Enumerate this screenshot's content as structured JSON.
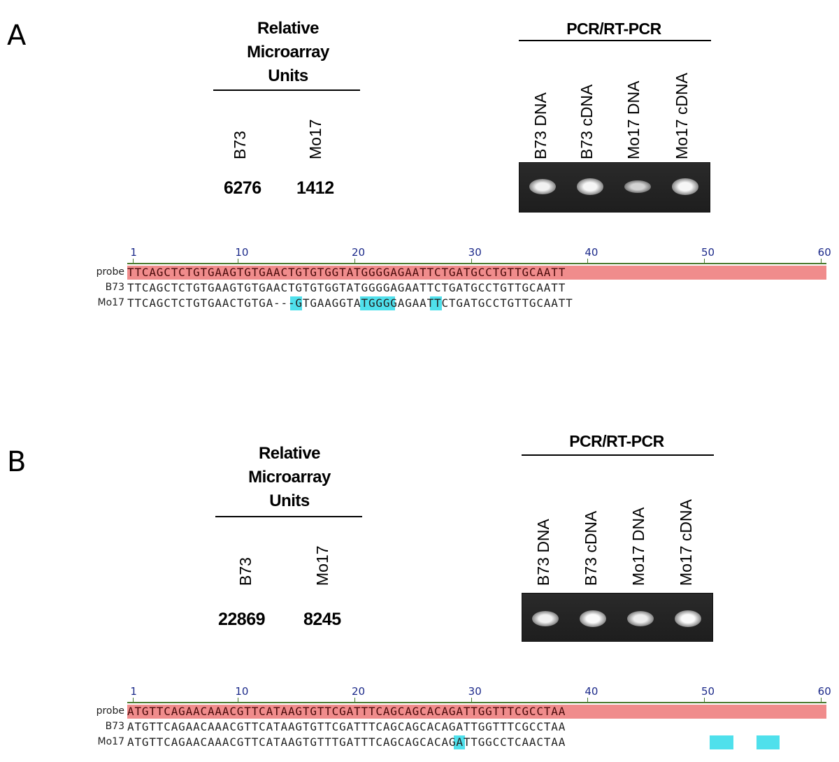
{
  "panels": [
    {
      "letter": "A",
      "microarray": {
        "title_lines": [
          "Relative",
          "Microarray",
          "Units"
        ],
        "lines": [
          "B73",
          "Mo17"
        ],
        "values": [
          "6276",
          "1412"
        ]
      },
      "pcr": {
        "title": "PCR/RT-PCR",
        "lanes": [
          "B73 DNA",
          "B73 cDNA",
          "Mo17 DNA",
          "Mo17 cDNA"
        ],
        "band_intensity": [
          0.9,
          0.95,
          0.55,
          0.95
        ]
      },
      "alignment": {
        "ruler_ticks": [
          "1",
          "10",
          "20",
          "30",
          "40",
          "50",
          "60"
        ],
        "rows": [
          {
            "label": "probe",
            "seq": "TTCAGCTCTGTGAAGTGTGAACTGTGTGGTATGGGGAGAATTCTGATGCCTGTTGCAATT"
          },
          {
            "label": "B73",
            "seq": "TTCAGCTCTGTGAAGTGTGAACTGTGTGGTATGGGGAGAATTCTGATGCCTGTTGCAATT"
          },
          {
            "label": "Mo17",
            "seq": "TTCAGCTCTGTGAACTGTGA---GTGAAGGTATGGGGAGAATTCTGATGCCTGTTGCAATT",
            "highlights": [
              [
                15,
                15
              ],
              [
                21,
                23
              ],
              [
                27,
                27
              ]
            ]
          }
        ]
      }
    },
    {
      "letter": "B",
      "microarray": {
        "title_lines": [
          "Relative",
          "Microarray",
          "Units"
        ],
        "lines": [
          "B73",
          "Mo17"
        ],
        "values": [
          "22869",
          "8245"
        ]
      },
      "pcr": {
        "title": "PCR/RT-PCR",
        "lanes": [
          "B73 DNA",
          "B73 cDNA",
          "Mo17 DNA",
          "Mo17 cDNA"
        ],
        "band_intensity": [
          0.9,
          1.0,
          0.85,
          1.0
        ]
      },
      "alignment": {
        "ruler_ticks": [
          "1",
          "10",
          "20",
          "30",
          "40",
          "50",
          "60"
        ],
        "rows": [
          {
            "label": "probe",
            "seq": "ATGTTCAGAACAAACGTTCATAAGTGTTCGATTTCAGCAGCACAGATTGGTTTCGCCTAA"
          },
          {
            "label": "B73",
            "seq": "ATGTTCAGAACAAACGTTCATAAGTGTTCGATTTCAGCAGCACAGATTGGTTTCGCCTAA"
          },
          {
            "label": "Mo17",
            "seq": "ATGTTCAGAACAAACGTTCATAAGTGTTTGATTTCAGCAGCACAGATTGGCCTCAACTAA",
            "highlights": [
              [
                29,
                29
              ],
              [
                51,
                52
              ],
              [
                55,
                56
              ]
            ]
          }
        ]
      }
    }
  ]
}
